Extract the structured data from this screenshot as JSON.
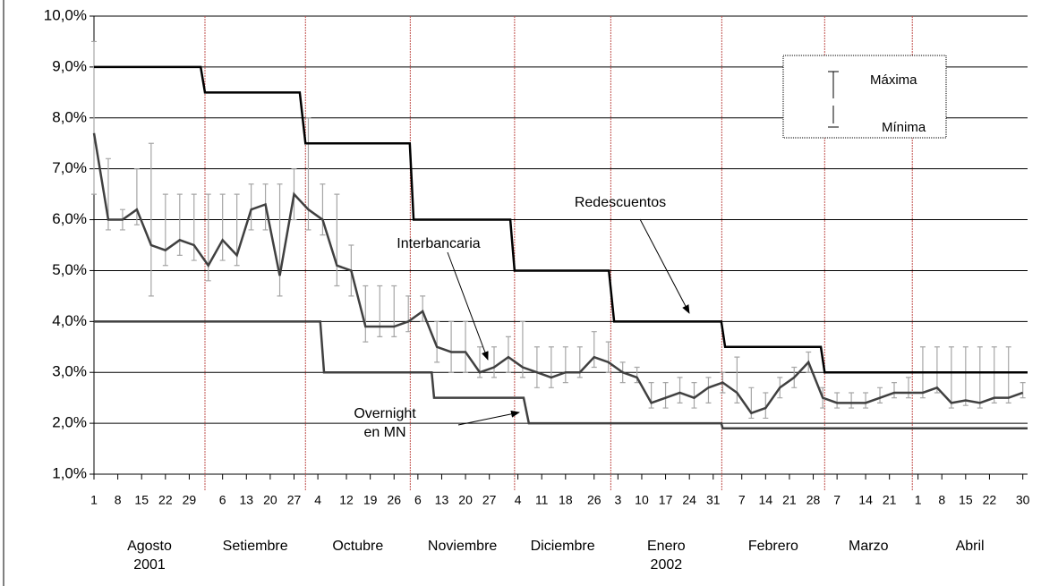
{
  "chart_data": {
    "type": "line",
    "xlim": [
      0,
      196
    ],
    "ylim": [
      1,
      10
    ],
    "yticks": [
      {
        "value": 1,
        "label": "1,0%"
      },
      {
        "value": 2,
        "label": "2,0%"
      },
      {
        "value": 3,
        "label": "3,0%"
      },
      {
        "value": 4,
        "label": "4,0%"
      },
      {
        "value": 5,
        "label": "5,0%"
      },
      {
        "value": 6,
        "label": "6,0%"
      },
      {
        "value": 7,
        "label": "7,0%"
      },
      {
        "value": 8,
        "label": "8,0%"
      },
      {
        "value": 9,
        "label": "9,0%"
      },
      {
        "value": 10,
        "label": "10,0%"
      }
    ],
    "xticks": [
      {
        "value": 0,
        "label": "1"
      },
      {
        "value": 5,
        "label": "8"
      },
      {
        "value": 10,
        "label": "15"
      },
      {
        "value": 15,
        "label": "22"
      },
      {
        "value": 20,
        "label": "29"
      },
      {
        "value": 27,
        "label": "6"
      },
      {
        "value": 32,
        "label": "13"
      },
      {
        "value": 37,
        "label": "20"
      },
      {
        "value": 42,
        "label": "27"
      },
      {
        "value": 47,
        "label": "4"
      },
      {
        "value": 53,
        "label": "12"
      },
      {
        "value": 58,
        "label": "19"
      },
      {
        "value": 63,
        "label": "26"
      },
      {
        "value": 68,
        "label": "6"
      },
      {
        "value": 73,
        "label": "13"
      },
      {
        "value": 78,
        "label": "20"
      },
      {
        "value": 83,
        "label": "27"
      },
      {
        "value": 89,
        "label": "4"
      },
      {
        "value": 94,
        "label": "11"
      },
      {
        "value": 99,
        "label": "18"
      },
      {
        "value": 105,
        "label": "26"
      },
      {
        "value": 110,
        "label": "3"
      },
      {
        "value": 115,
        "label": "10"
      },
      {
        "value": 120,
        "label": "17"
      },
      {
        "value": 125,
        "label": "24"
      },
      {
        "value": 130,
        "label": "31"
      },
      {
        "value": 136,
        "label": "7"
      },
      {
        "value": 141,
        "label": "14"
      },
      {
        "value": 146,
        "label": "21"
      },
      {
        "value": 151,
        "label": "28"
      },
      {
        "value": 156,
        "label": "7"
      },
      {
        "value": 162,
        "label": "14"
      },
      {
        "value": 167,
        "label": "21"
      },
      {
        "value": 173,
        "label": "1"
      },
      {
        "value": 178,
        "label": "8"
      },
      {
        "value": 183,
        "label": "15"
      },
      {
        "value": 188,
        "label": "22"
      },
      {
        "value": 195,
        "label": "30"
      }
    ],
    "grid": true,
    "month_dividers": [
      23.3,
      44.4,
      66.4,
      88.3,
      108.5,
      131.8,
      153.4,
      171.8
    ],
    "divider_color": "#c0504d",
    "month_labels": [
      "Agosto\n2001",
      "Setiembre",
      "Octubre",
      "Noviembre",
      "Diciembre",
      "Enero\n2002",
      "Febrero",
      "Marzo",
      "Abril"
    ],
    "legend": [
      "Máxima",
      "Mínima"
    ],
    "series": [
      {
        "name": "Interbancaria",
        "color": "#404040",
        "range_color": "#a6a6a6",
        "x": [
          0,
          3,
          6,
          9,
          12,
          15,
          18,
          21,
          24,
          27,
          30,
          33,
          36,
          39,
          42,
          45,
          48,
          51,
          54,
          57,
          60,
          63,
          66,
          69,
          72,
          75,
          78,
          81,
          84,
          87,
          90,
          93,
          96,
          99,
          102,
          105,
          108,
          111,
          114,
          117,
          120,
          123,
          126,
          129,
          132,
          135,
          138,
          141,
          144,
          147,
          150,
          153,
          156,
          159,
          162,
          165,
          168,
          171,
          174,
          177,
          180,
          183,
          186,
          189,
          192,
          195
        ],
        "values": [
          7.7,
          6.0,
          6.0,
          6.2,
          5.5,
          5.4,
          5.6,
          5.5,
          5.1,
          5.6,
          5.3,
          6.2,
          6.3,
          4.9,
          6.5,
          6.2,
          6.0,
          5.1,
          5.0,
          3.9,
          3.9,
          3.9,
          4.0,
          4.2,
          3.5,
          3.4,
          3.4,
          3.0,
          3.1,
          3.3,
          3.1,
          3.0,
          2.9,
          3.0,
          3.0,
          3.3,
          3.2,
          3.0,
          2.9,
          2.4,
          2.5,
          2.6,
          2.5,
          2.7,
          2.8,
          2.6,
          2.2,
          2.3,
          2.7,
          2.9,
          3.2,
          2.5,
          2.4,
          2.4,
          2.4,
          2.5,
          2.6,
          2.6,
          2.6,
          2.7,
          2.4,
          2.45,
          2.4,
          2.5,
          2.5,
          2.6
        ],
        "high": [
          9.5,
          7.2,
          6.2,
          7.0,
          7.5,
          6.5,
          6.5,
          6.5,
          6.5,
          6.5,
          6.5,
          6.7,
          6.7,
          6.7,
          7.0,
          8.0,
          6.7,
          6.5,
          5.5,
          4.7,
          4.7,
          4.7,
          4.5,
          4.5,
          4.0,
          4.0,
          4.0,
          3.5,
          3.5,
          3.7,
          4.0,
          3.5,
          3.5,
          3.5,
          3.5,
          3.8,
          3.6,
          3.2,
          3.1,
          2.8,
          2.8,
          2.9,
          2.8,
          2.9,
          3.0,
          3.3,
          2.7,
          2.6,
          2.9,
          3.1,
          3.4,
          2.7,
          2.6,
          2.6,
          2.6,
          2.7,
          2.8,
          2.9,
          3.5,
          3.5,
          3.5,
          3.5,
          3.5,
          3.5,
          3.5,
          2.8
        ],
        "low": [
          6.5,
          5.8,
          5.8,
          5.9,
          4.5,
          5.1,
          5.3,
          5.2,
          4.8,
          5.2,
          5.1,
          5.8,
          5.8,
          4.5,
          6.0,
          5.8,
          5.7,
          4.7,
          4.5,
          3.6,
          3.7,
          3.7,
          3.8,
          4.0,
          3.2,
          3.0,
          3.0,
          2.9,
          2.9,
          3.0,
          2.9,
          2.7,
          2.7,
          2.8,
          2.9,
          3.1,
          3.0,
          2.8,
          2.8,
          2.3,
          2.3,
          2.4,
          2.3,
          2.4,
          2.6,
          2.4,
          2.1,
          2.1,
          2.5,
          2.7,
          3.0,
          2.3,
          2.3,
          2.3,
          2.3,
          2.4,
          2.5,
          2.5,
          2.5,
          2.6,
          2.3,
          2.35,
          2.3,
          2.4,
          2.4,
          2.5
        ]
      },
      {
        "name": "Redescuentos",
        "color": "#000000",
        "x": [
          0,
          22.4,
          23.3,
          43.2,
          44.4,
          66.3,
          67.1,
          87.4,
          88.3,
          108.1,
          109.2,
          131.7,
          132.5,
          152.6,
          153.4,
          196
        ],
        "values": [
          9,
          9,
          8.5,
          8.5,
          7.5,
          7.5,
          6,
          6,
          5,
          5,
          4,
          4,
          3.5,
          3.5,
          3,
          3
        ]
      },
      {
        "name": "Overnight\nen MN",
        "color": "#404040",
        "x": [
          0,
          47.5,
          48.3,
          70.9,
          71.4,
          90.2,
          91.3,
          131.7,
          132,
          196
        ],
        "values": [
          4,
          4,
          3,
          3,
          2.5,
          2.5,
          2,
          2,
          1.9,
          1.9
        ]
      }
    ]
  }
}
